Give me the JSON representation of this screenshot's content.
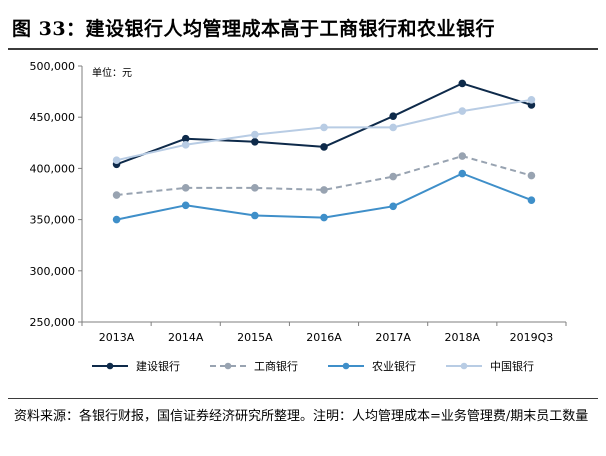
{
  "figure": {
    "title": "图 33：建设银行人均管理成本高于工商银行和农业银行",
    "source": "资料来源：各银行财报，国信证券经济研究所整理。注明：人均管理成本=业务管理费/期末员工数量"
  },
  "colors": {
    "ccb": "#0e2a4a",
    "icbc": "#98a3b1",
    "abc": "#3f8fc9",
    "boc": "#b8cce4",
    "axis": "#7f7f7f"
  },
  "chart_data": {
    "type": "line",
    "unit_label": "单位：元",
    "categories": [
      "2013A",
      "2014A",
      "2015A",
      "2016A",
      "2017A",
      "2018A",
      "2019Q3"
    ],
    "y_tick_labels": [
      "250,000",
      "300,000",
      "350,000",
      "400,000",
      "450,000",
      "500,000"
    ],
    "ylim": [
      250000,
      500000
    ],
    "y_ticks": [
      250000,
      300000,
      350000,
      400000,
      450000,
      500000
    ],
    "grid": false,
    "legend_position": "bottom",
    "series": [
      {
        "name": "建设银行",
        "color": "#0e2a4a",
        "dash": "solid",
        "values": [
          404000,
          429000,
          426000,
          421000,
          451000,
          483000,
          462000
        ]
      },
      {
        "name": "工商银行",
        "color": "#98a3b1",
        "dash": "dashed",
        "values": [
          374000,
          381000,
          381000,
          379000,
          392000,
          412000,
          393000
        ]
      },
      {
        "name": "农业银行",
        "color": "#3f8fc9",
        "dash": "solid",
        "values": [
          350000,
          364000,
          354000,
          352000,
          363000,
          395000,
          369000
        ]
      },
      {
        "name": "中国银行",
        "color": "#b8cce4",
        "dash": "solid",
        "values": [
          408000,
          423000,
          433000,
          440000,
          440000,
          456000,
          467000
        ]
      }
    ]
  }
}
